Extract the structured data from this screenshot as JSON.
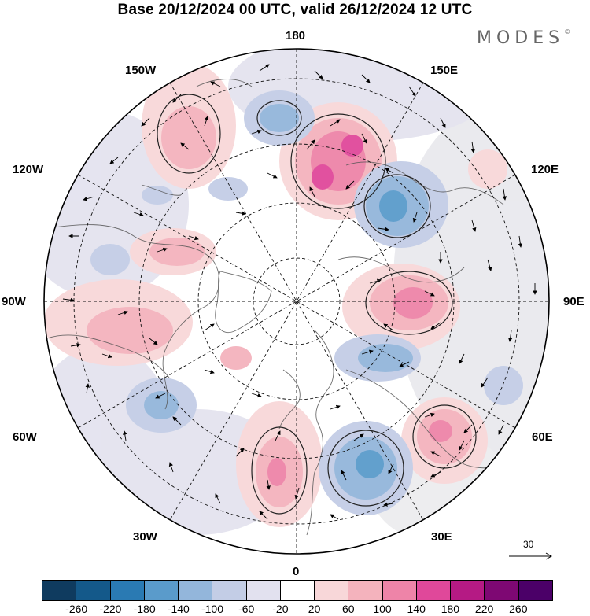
{
  "title": "Base 20/12/2024 00 UTC, valid 26/12/2024 12 UTC",
  "brand": {
    "name": "MODES",
    "mark": "©"
  },
  "map": {
    "projection": "north polar stereographic",
    "longitude_labels": {
      "top": "180",
      "bottom": "0",
      "left": "90W",
      "right": "90E",
      "ul_150": "150W",
      "ul_120": "120W",
      "ur_150": "150E",
      "ur_120": "120E",
      "ll_60": "60W",
      "ll_30": "30W",
      "lr_60": "60E",
      "lr_30": "30E"
    },
    "reference_vector": {
      "value": "30"
    }
  },
  "colorbar": {
    "ticks": [
      "-260",
      "-220",
      "-180",
      "-140",
      "-100",
      "-60",
      "-20",
      "20",
      "60",
      "100",
      "140",
      "180",
      "220",
      "260"
    ],
    "colors": [
      "#0f3b5f",
      "#14598a",
      "#2a7ab3",
      "#5a9bcb",
      "#93b6db",
      "#c3cde6",
      "#e2e1ef",
      "#ffffff",
      "#f8d7d9",
      "#f4b3bd",
      "#ee84a8",
      "#e0489a",
      "#b51a84",
      "#7e0873",
      "#4b0068"
    ]
  }
}
